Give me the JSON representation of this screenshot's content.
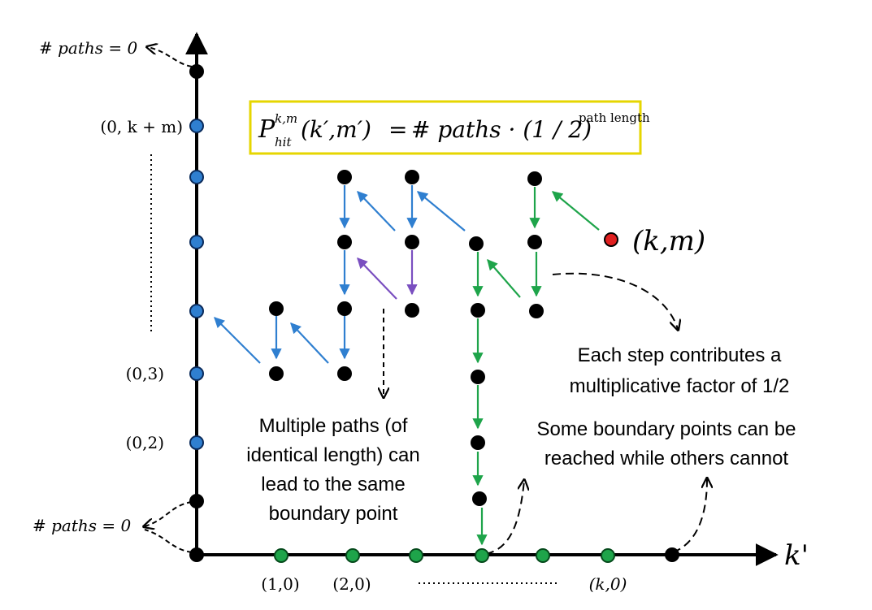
{
  "formula": {
    "lhs_base": "P",
    "lhs_sub": "hit",
    "lhs_sup": "k,m",
    "lhs_args": "(k′,m′)",
    "equals": "=",
    "rhs": "# paths · (1 / 2)",
    "rhs_sup": "path length",
    "box_color": "#e6d600"
  },
  "axes": {
    "x_label": "k'"
  },
  "y_labels": {
    "top": "(0, k + m)",
    "three": "(0,3)",
    "two": "(0,2)"
  },
  "x_labels": {
    "one": "(1,0)",
    "two": "(2,0)",
    "k": "(k,0)"
  },
  "paths_zero_top": "# paths = 0",
  "paths_zero_bottom": "# paths = 0",
  "target_label": "(k,m)",
  "annotations": {
    "multiple_paths": [
      "Multiple paths (of",
      "identical length) can",
      "lead to the same",
      "boundary point"
    ],
    "each_step": [
      "Each step contributes a",
      "multiplicative factor of 1/2"
    ],
    "some_boundary": [
      "Some boundary points can be",
      "reached while others cannot"
    ]
  },
  "colors": {
    "blue": "#2f7fd0",
    "green": "#1ea44a",
    "purple": "#7a4fc0",
    "red": "#e02020",
    "black": "#000000",
    "formula_box": "#e6d600"
  }
}
